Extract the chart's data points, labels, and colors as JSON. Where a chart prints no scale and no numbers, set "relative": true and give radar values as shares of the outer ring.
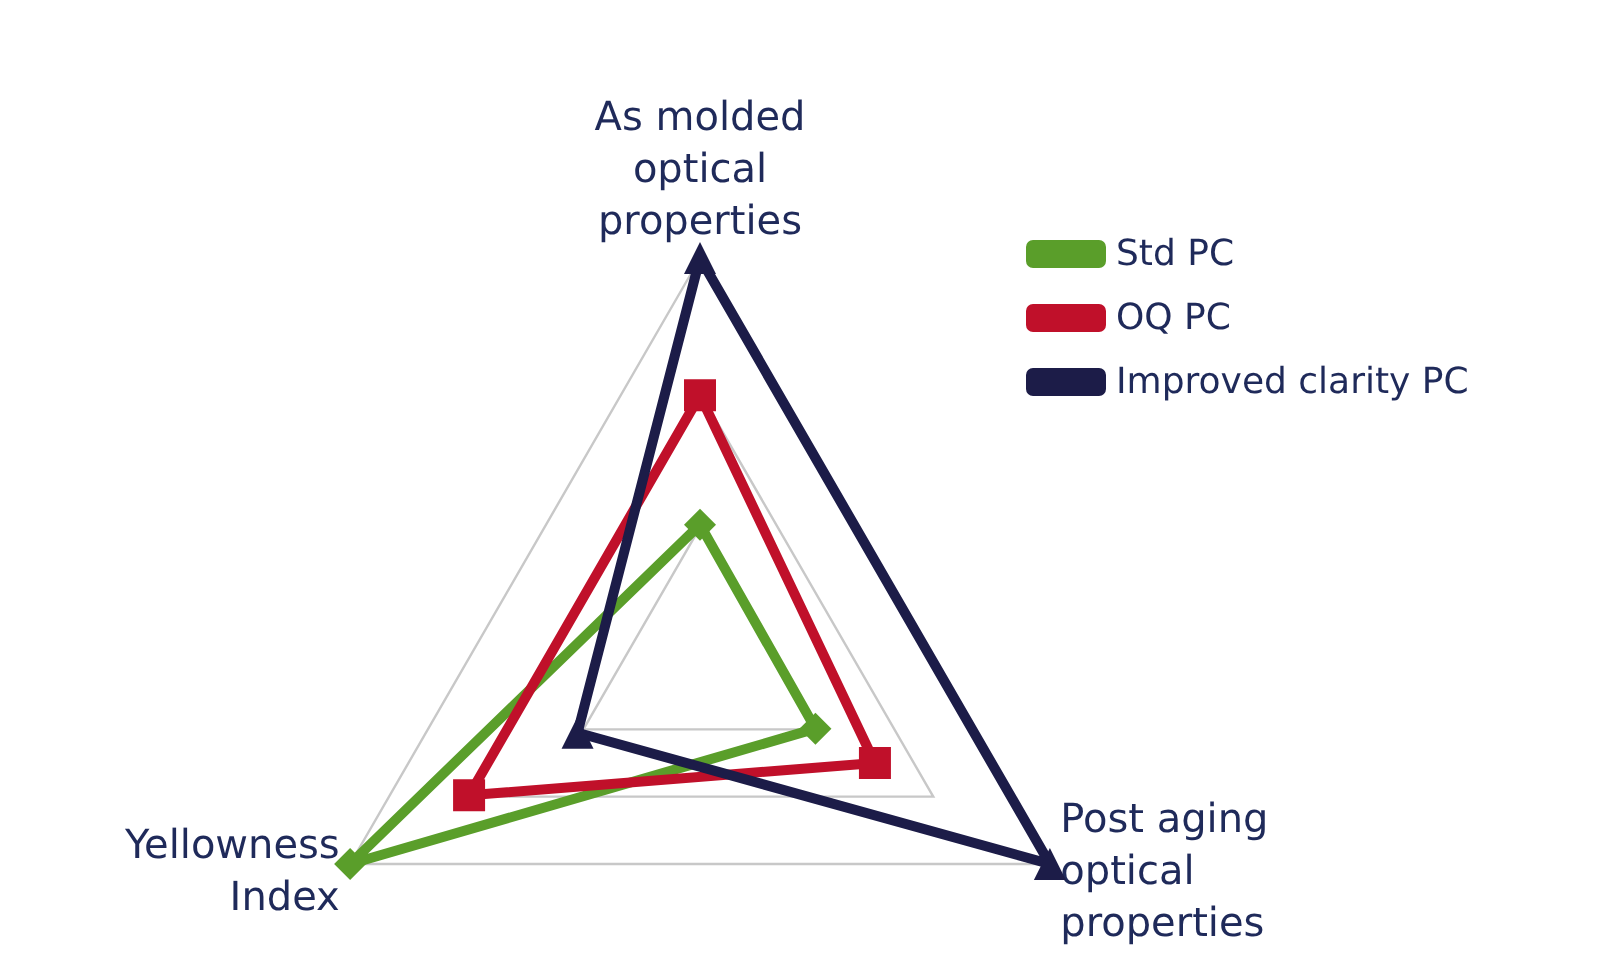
{
  "chart_data": {
    "type": "radar",
    "relative": true,
    "categories": [
      "As molded optical properties",
      "Post aging optical properties",
      "Yellowness Index"
    ],
    "series": [
      {
        "name": "Std PC",
        "color": "#5a9e2a",
        "marker": "diamond",
        "values": [
          0.34,
          0.33,
          1.0
        ]
      },
      {
        "name": "OQ PC",
        "color": "#c0102a",
        "marker": "square",
        "values": [
          0.66,
          0.5,
          0.66
        ]
      },
      {
        "name": "Improved clarity PC",
        "color": "#1c1c48",
        "marker": "triangle",
        "values": [
          1.0,
          1.0,
          0.35
        ]
      }
    ],
    "grid": true,
    "legend": "top right"
  }
}
